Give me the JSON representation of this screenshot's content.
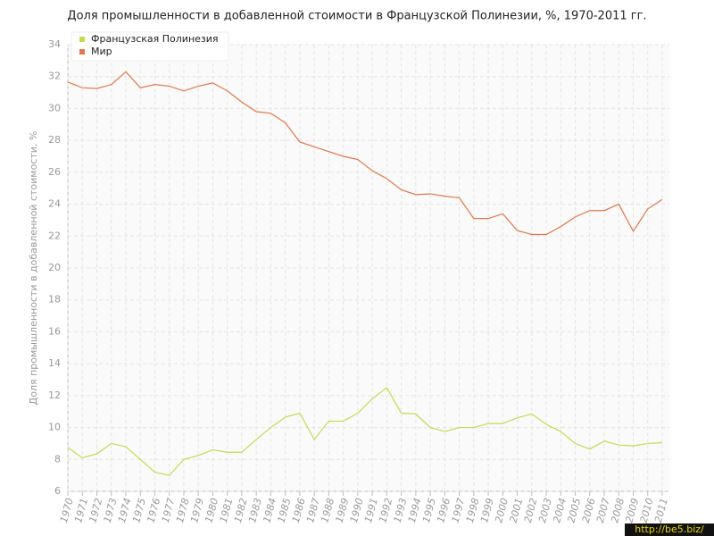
{
  "chart_data": {
    "type": "line",
    "title": "Доля промышленности в добавленной стоимости в Французской Полинезии, %, 1970-2011 гг.",
    "y_label": "Доля промышленности в добавленной стоимости, %",
    "categories": [
      "1970",
      "1971",
      "1972",
      "1973",
      "1974",
      "1975",
      "1976",
      "1977",
      "1978",
      "1979",
      "1980",
      "1981",
      "1982",
      "1983",
      "1984",
      "1985",
      "1986",
      "1987",
      "1988",
      "1989",
      "1990",
      "1991",
      "1992",
      "1993",
      "1994",
      "1995",
      "1996",
      "1997",
      "1998",
      "1999",
      "2000",
      "2001",
      "2002",
      "2003",
      "2004",
      "2005",
      "2006",
      "2007",
      "2008",
      "2009",
      "2010",
      "2011"
    ],
    "series": [
      {
        "name": "Французская Полинезия",
        "color": "#c3dc4e",
        "values": [
          8.75,
          8.1,
          8.35,
          9.0,
          8.8,
          8.0,
          7.2,
          7.0,
          8.0,
          8.25,
          8.6,
          8.45,
          8.45,
          9.25,
          10.0,
          10.65,
          10.9,
          9.25,
          10.4,
          10.4,
          10.9,
          11.8,
          12.5,
          10.9,
          10.85,
          10.0,
          9.75,
          10.0,
          10.0,
          10.25,
          10.25,
          10.6,
          10.85,
          10.2,
          9.75,
          9.0,
          8.65,
          9.15,
          8.9,
          8.85,
          9.0,
          9.05
        ]
      },
      {
        "name": "Мир",
        "color": "#e0774a",
        "values": [
          31.65,
          31.3,
          31.25,
          31.5,
          32.3,
          31.3,
          31.5,
          31.4,
          31.1,
          31.4,
          31.6,
          31.1,
          30.4,
          29.8,
          29.7,
          29.1,
          27.9,
          27.6,
          27.3,
          27.0,
          26.8,
          26.1,
          25.6,
          24.9,
          24.6,
          24.65,
          24.5,
          24.4,
          23.1,
          23.1,
          23.4,
          22.35,
          22.1,
          22.1,
          22.6,
          23.2,
          23.6,
          23.6,
          24.0,
          22.3,
          23.7,
          24.3
        ]
      }
    ],
    "ylim": [
      6,
      34
    ],
    "yticks": [
      6,
      8,
      10,
      12,
      14,
      16,
      18,
      20,
      22,
      24,
      26,
      28,
      30,
      32,
      34
    ],
    "grid": true,
    "legend": "top-left"
  },
  "watermark": "http://be5.biz/"
}
